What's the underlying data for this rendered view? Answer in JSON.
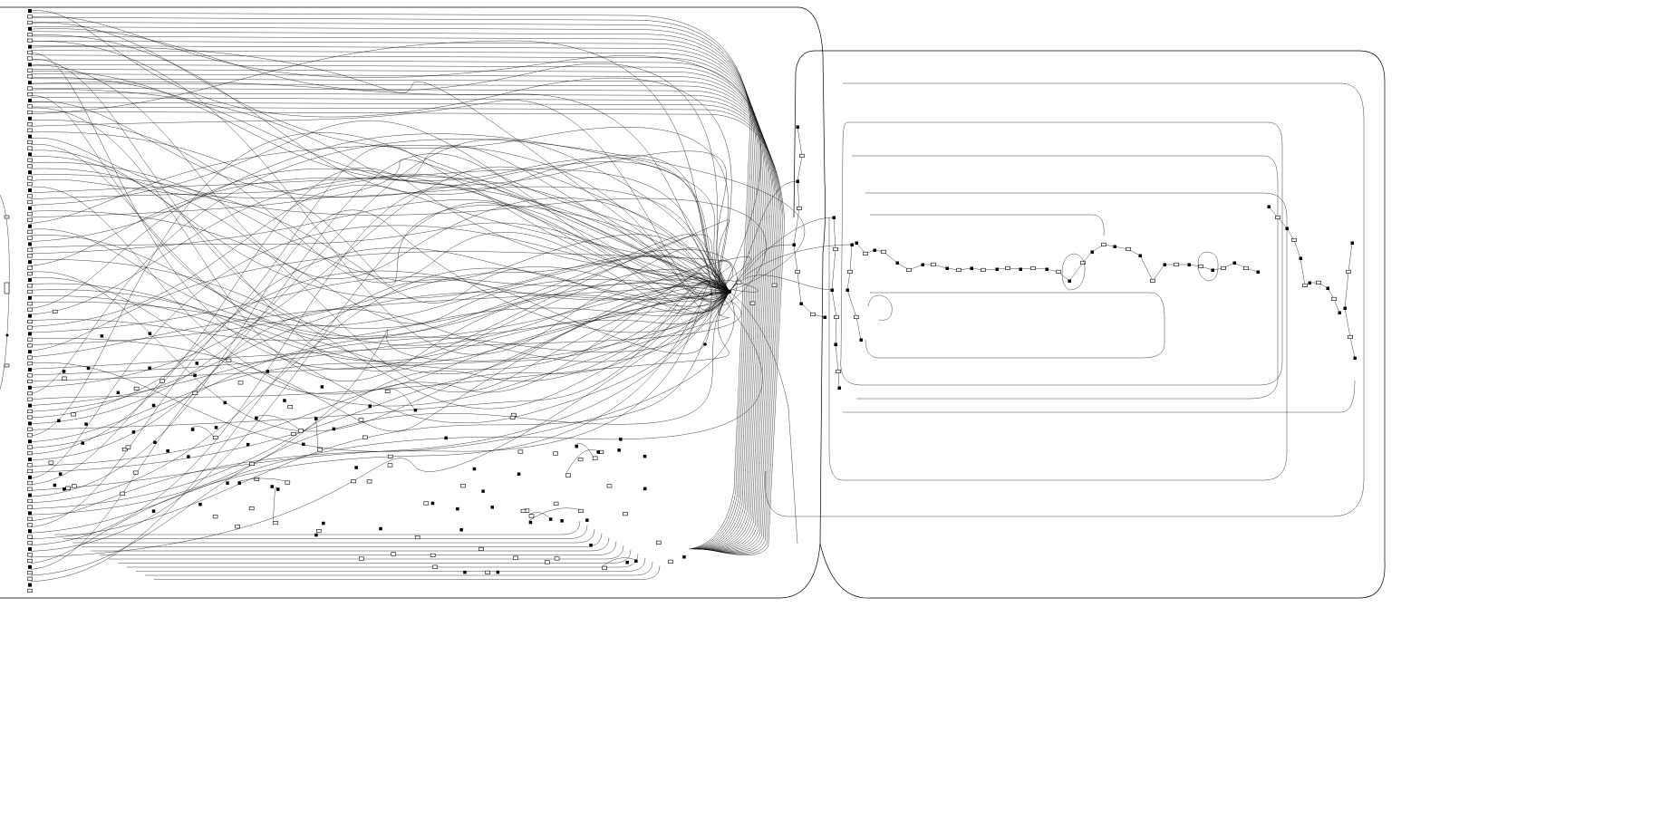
{
  "diagram": {
    "kind": "flow-graph",
    "colors": {
      "stroke": "#000000",
      "background": "#ffffff",
      "node_fill": "#000000"
    },
    "labels": []
  }
}
